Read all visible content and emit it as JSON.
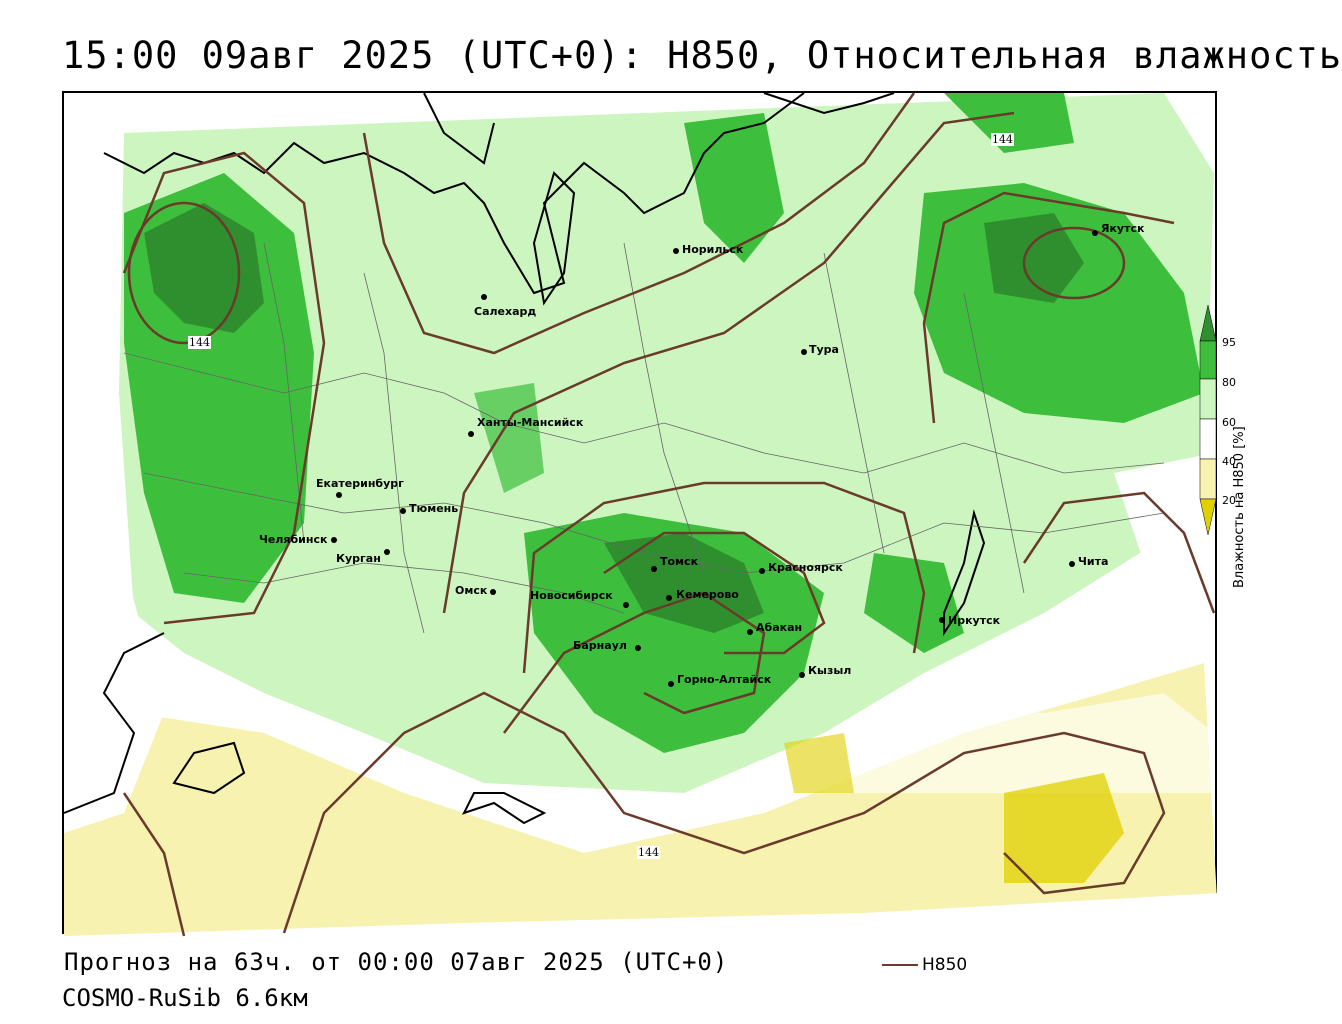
{
  "title": "15:00 09авг 2025 (UTC+0): H850, Относительная влажность",
  "footer": {
    "forecast": "Прогноз на 63ч. от 00:00 07авг 2025 (UTC+0)",
    "model": "COSMO-RuSib 6.6км",
    "legend_label": "H850"
  },
  "colorbar": {
    "title": "Влажность на H850 [%]",
    "ticks": [
      "95",
      "80",
      "60",
      "40",
      "20"
    ],
    "colors": {
      "c95": "#2f8f2f",
      "c80": "#3dbf3d",
      "c60": "#cdf5c0",
      "c40": "#ffffff",
      "c20": "#f7f2b0",
      "c0": "#e0d000"
    }
  },
  "isolines": {
    "color": "#6a3a2a",
    "labels": [
      "144",
      "144",
      "144"
    ]
  },
  "cities": [
    {
      "name": "Норильск"
    },
    {
      "name": "Салехард"
    },
    {
      "name": "Тура"
    },
    {
      "name": "Якутск"
    },
    {
      "name": "Ханты-Мансийск"
    },
    {
      "name": "Екатеринбург"
    },
    {
      "name": "Тюмень"
    },
    {
      "name": "Челябинск"
    },
    {
      "name": "Курган"
    },
    {
      "name": "Омск"
    },
    {
      "name": "Новосибирск"
    },
    {
      "name": "Томск"
    },
    {
      "name": "Кемерово"
    },
    {
      "name": "Красноярск"
    },
    {
      "name": "Абакан"
    },
    {
      "name": "Барнаул"
    },
    {
      "name": "Горно-Алтайск"
    },
    {
      "name": "Кызыл"
    },
    {
      "name": "Иркутск"
    },
    {
      "name": "Чита"
    }
  ]
}
